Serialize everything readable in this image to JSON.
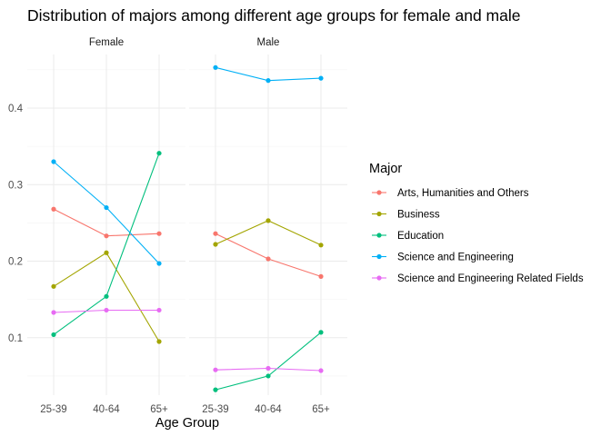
{
  "chart_data": {
    "type": "line",
    "title": "Distribution of majors among different age groups for female and male",
    "xlabel": "Age Group",
    "ylabel": "",
    "ylim": [
      0.025,
      0.47
    ],
    "y_ticks": [
      "0.1",
      "0.2",
      "0.3",
      "0.4"
    ],
    "grid": true,
    "categories": [
      "25-39",
      "40-64",
      "65+"
    ],
    "legend": {
      "title": "Major",
      "position": "right"
    },
    "panels": [
      {
        "label": "Female",
        "series": [
          {
            "name": "Arts, Humanities and Others",
            "color": "#F8766D",
            "values": [
              0.268,
              0.233,
              0.236
            ]
          },
          {
            "name": "Business",
            "color": "#A3A500",
            "values": [
              0.167,
              0.211,
              0.095
            ]
          },
          {
            "name": "Education",
            "color": "#00BF7D",
            "values": [
              0.104,
              0.154,
              0.341
            ]
          },
          {
            "name": "Science and Engineering",
            "color": "#00B0F6",
            "values": [
              0.33,
              0.27,
              0.197
            ]
          },
          {
            "name": "Science and Engineering Related Fields",
            "color": "#E76BF3",
            "values": [
              0.133,
              0.136,
              0.136
            ]
          }
        ]
      },
      {
        "label": "Male",
        "series": [
          {
            "name": "Arts, Humanities and Others",
            "color": "#F8766D",
            "values": [
              0.236,
              0.203,
              0.18
            ]
          },
          {
            "name": "Business",
            "color": "#A3A500",
            "values": [
              0.222,
              0.253,
              0.221
            ]
          },
          {
            "name": "Education",
            "color": "#00BF7D",
            "values": [
              0.032,
              0.05,
              0.107
            ]
          },
          {
            "name": "Science and Engineering",
            "color": "#00B0F6",
            "values": [
              0.453,
              0.436,
              0.439
            ]
          },
          {
            "name": "Science and Engineering Related Fields",
            "color": "#E76BF3",
            "values": [
              0.058,
              0.06,
              0.057
            ]
          }
        ]
      }
    ]
  }
}
